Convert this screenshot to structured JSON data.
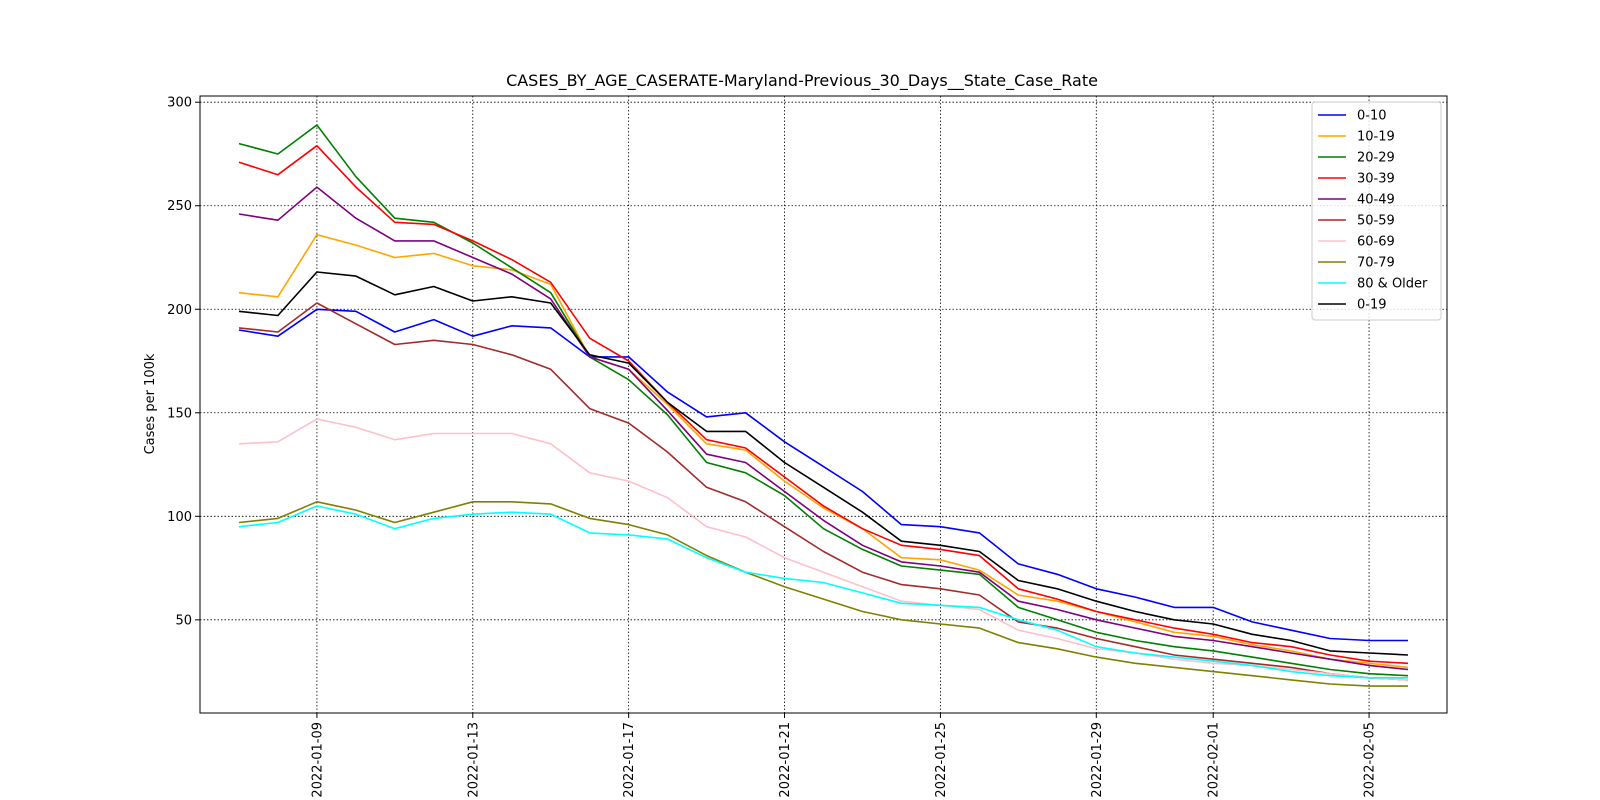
{
  "chart_data": {
    "type": "line",
    "title": "CASES_BY_AGE_CASERATE-Maryland-Previous_30_Days__State_Case_Rate",
    "xlabel": "",
    "ylabel": "Cases per 100k",
    "x_axis_type": "date",
    "xlim": [
      "2022-01-06",
      "2022-02-07"
    ],
    "ylim": [
      5,
      303
    ],
    "x": [
      "2022-01-07",
      "2022-01-08",
      "2022-01-09",
      "2022-01-10",
      "2022-01-11",
      "2022-01-12",
      "2022-01-13",
      "2022-01-14",
      "2022-01-15",
      "2022-01-16",
      "2022-01-17",
      "2022-01-18",
      "2022-01-19",
      "2022-01-20",
      "2022-01-21",
      "2022-01-22",
      "2022-01-23",
      "2022-01-24",
      "2022-01-25",
      "2022-01-26",
      "2022-01-27",
      "2022-01-28",
      "2022-01-29",
      "2022-01-30",
      "2022-01-31",
      "2022-02-01",
      "2022-02-02",
      "2022-02-03",
      "2022-02-04",
      "2022-02-05",
      "2022-02-06"
    ],
    "x_ticks": [
      "2022-01-09",
      "2022-01-13",
      "2022-01-17",
      "2022-01-21",
      "2022-01-25",
      "2022-01-29",
      "2022-02-01",
      "2022-02-05"
    ],
    "y_ticks": [
      50,
      100,
      150,
      200,
      250,
      300
    ],
    "grid": true,
    "grid_style": "dotted",
    "legend_position": "top-right",
    "series": [
      {
        "name": "0-10",
        "color": "#0000ff",
        "values": [
          190,
          187,
          200,
          199,
          189,
          195,
          187,
          192,
          191,
          177,
          177,
          160,
          148,
          150,
          136,
          124,
          112,
          96,
          95,
          92,
          77,
          72,
          65,
          61,
          56,
          56,
          49,
          45,
          41,
          40,
          40
        ]
      },
      {
        "name": "10-19",
        "color": "#ffa500",
        "values": [
          208,
          206,
          236,
          231,
          225,
          227,
          221,
          219,
          212,
          177,
          171,
          154,
          135,
          132,
          117,
          104,
          94,
          80,
          79,
          74,
          62,
          59,
          54,
          49,
          44,
          42,
          38,
          35,
          31,
          29,
          27
        ]
      },
      {
        "name": "20-29",
        "color": "#008000",
        "values": [
          280,
          275,
          289,
          264,
          244,
          242,
          232,
          220,
          208,
          177,
          166,
          149,
          126,
          121,
          110,
          94,
          84,
          76,
          74,
          72,
          56,
          50,
          44,
          40,
          37,
          35,
          32,
          29,
          26,
          24,
          23
        ]
      },
      {
        "name": "30-39",
        "color": "#ff0000",
        "values": [
          271,
          265,
          279,
          259,
          242,
          241,
          233,
          224,
          213,
          186,
          175,
          155,
          137,
          133,
          119,
          105,
          94,
          86,
          84,
          81,
          65,
          60,
          54,
          50,
          46,
          43,
          39,
          37,
          33,
          30,
          29
        ]
      },
      {
        "name": "40-49",
        "color": "#800080",
        "values": [
          246,
          243,
          259,
          244,
          233,
          233,
          225,
          217,
          205,
          177,
          171,
          151,
          130,
          126,
          112,
          98,
          86,
          78,
          76,
          73,
          59,
          55,
          50,
          46,
          42,
          40,
          37,
          34,
          31,
          28,
          26
        ]
      },
      {
        "name": "50-59",
        "color": "#a52a2a",
        "values": [
          191,
          189,
          203,
          193,
          183,
          185,
          183,
          178,
          171,
          152,
          145,
          131,
          114,
          107,
          95,
          83,
          73,
          67,
          65,
          62,
          49,
          46,
          41,
          37,
          33,
          31,
          29,
          27,
          24,
          22,
          21
        ]
      },
      {
        "name": "60-69",
        "color": "#ffc0cb",
        "values": [
          135,
          136,
          147,
          143,
          137,
          140,
          140,
          140,
          135,
          121,
          117,
          109,
          95,
          90,
          80,
          73,
          66,
          59,
          57,
          55,
          45,
          41,
          36,
          34,
          31,
          29,
          28,
          26,
          24,
          22,
          21
        ]
      },
      {
        "name": "70-79",
        "color": "#808000",
        "values": [
          97,
          99,
          107,
          103,
          97,
          102,
          107,
          107,
          106,
          99,
          96,
          91,
          81,
          73,
          66,
          60,
          54,
          50,
          48,
          46,
          39,
          36,
          32,
          29,
          27,
          25,
          23,
          21,
          19,
          18,
          18
        ]
      },
      {
        "name": "80 & Older",
        "color": "#00ffff",
        "values": [
          95,
          97,
          105,
          101,
          94,
          99,
          101,
          102,
          101,
          92,
          91,
          89,
          80,
          73,
          70,
          68,
          63,
          58,
          57,
          56,
          50,
          45,
          37,
          34,
          32,
          30,
          28,
          25,
          23,
          22,
          22
        ]
      },
      {
        "name": "0-19",
        "color": "#000000",
        "values": [
          199,
          197,
          218,
          216,
          207,
          211,
          204,
          206,
          203,
          178,
          174,
          155,
          141,
          141,
          126,
          114,
          102,
          88,
          86,
          83,
          69,
          65,
          59,
          54,
          50,
          48,
          43,
          40,
          35,
          34,
          33
        ]
      }
    ]
  }
}
